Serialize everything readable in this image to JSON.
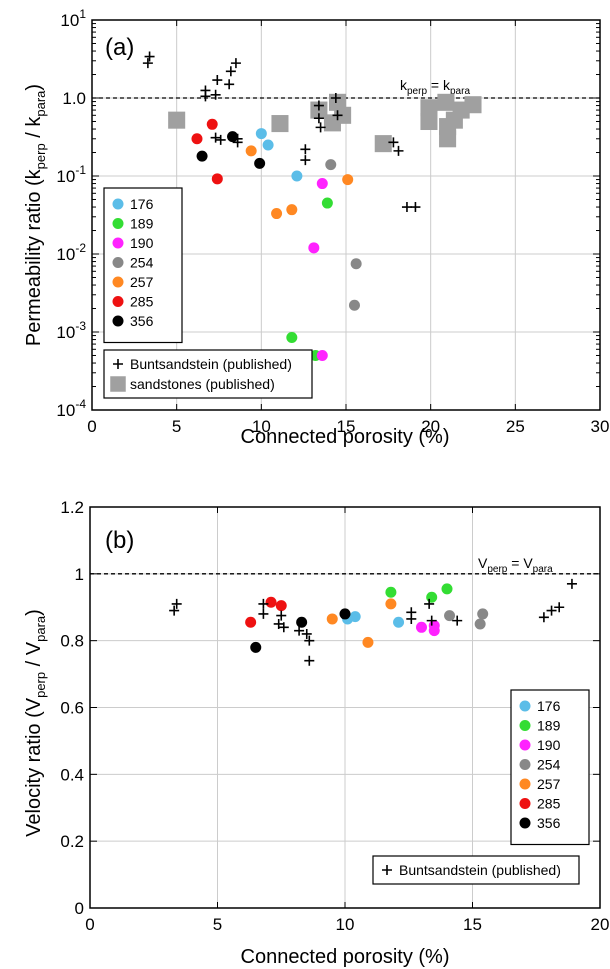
{
  "chart_data": [
    {
      "type": "scatter",
      "panel_label": "(a)",
      "xlabel": "Connected porosity (%)",
      "ylabel_main": "Permeability ratio (k",
      "ylabel_sub1": "perp",
      "ylabel_mid": " / k",
      "ylabel_sub2": "para",
      "ylabel_end": ")",
      "x_ticks": [
        "0",
        "5",
        "10",
        "15",
        "20",
        "25",
        "30"
      ],
      "y_ticks": [
        {
          "base": "10",
          "exp": "-4"
        },
        {
          "base": "10",
          "exp": "-3"
        },
        {
          "base": "10",
          "exp": "-2"
        },
        {
          "base": "10",
          "exp": "-1"
        },
        {
          "base": "1.0",
          "exp": ""
        },
        {
          "base": "10",
          "exp": "1"
        }
      ],
      "xlim": [
        0,
        30
      ],
      "ylim": [
        0.0001,
        10
      ],
      "y_scale": "log",
      "grid": true,
      "legend_placement": "left",
      "reference_line": {
        "value": 1,
        "label_a": "k",
        "label_a_sub": "perp",
        "label_eq": " = k",
        "label_b_sub": "para"
      },
      "series": [
        {
          "name": "176",
          "color": "#5bbde8",
          "marker": "circle",
          "points": [
            [
              10.0,
              0.35
            ],
            [
              10.4,
              0.25
            ],
            [
              12.1,
              0.1
            ]
          ]
        },
        {
          "name": "189",
          "color": "#33dd33",
          "marker": "circle",
          "points": [
            [
              11.8,
              0.00085
            ],
            [
              13.2,
              0.0005
            ],
            [
              13.9,
              0.045
            ]
          ]
        },
        {
          "name": "190",
          "color": "#ff22ff",
          "marker": "circle",
          "points": [
            [
              13.1,
              0.012
            ],
            [
              13.6,
              0.08
            ],
            [
              13.6,
              0.0005
            ]
          ]
        },
        {
          "name": "254",
          "color": "#888888",
          "marker": "circle",
          "points": [
            [
              14.1,
              0.14
            ],
            [
              15.6,
              0.0075
            ],
            [
              15.5,
              0.0022
            ]
          ]
        },
        {
          "name": "257",
          "color": "#ff8822",
          "marker": "circle",
          "points": [
            [
              9.4,
              0.21
            ],
            [
              10.9,
              0.033
            ],
            [
              11.8,
              0.037
            ],
            [
              15.1,
              0.09
            ]
          ]
        },
        {
          "name": "285",
          "color": "#ee1111",
          "marker": "circle",
          "points": [
            [
              6.2,
              0.3
            ],
            [
              7.1,
              0.46
            ],
            [
              7.4,
              0.092
            ]
          ]
        },
        {
          "name": "356",
          "color": "#000000",
          "marker": "circle",
          "points": [
            [
              6.5,
              0.18
            ],
            [
              8.3,
              0.32
            ],
            [
              9.9,
              0.145
            ]
          ]
        },
        {
          "name": "Buntsandstein (published)",
          "color": "#000000",
          "marker": "plus",
          "points": [
            [
              3.3,
              2.8
            ],
            [
              3.4,
              3.4
            ],
            [
              6.7,
              1.05
            ],
            [
              6.7,
              1.25
            ],
            [
              7.3,
              1.1
            ],
            [
              7.4,
              1.7
            ],
            [
              8.1,
              1.5
            ],
            [
              8.2,
              2.2
            ],
            [
              8.5,
              2.8
            ],
            [
              7.3,
              0.31
            ],
            [
              7.6,
              0.29
            ],
            [
              8.6,
              0.27
            ],
            [
              8.6,
              0.3
            ],
            [
              13.4,
              0.8
            ],
            [
              13.4,
              0.55
            ],
            [
              13.5,
              0.42
            ],
            [
              12.6,
              0.22
            ],
            [
              12.6,
              0.16
            ],
            [
              14.4,
              1.0
            ],
            [
              14.5,
              0.6
            ],
            [
              17.8,
              0.27
            ],
            [
              18.1,
              0.21
            ],
            [
              18.6,
              0.04
            ],
            [
              19.1,
              0.04
            ]
          ]
        },
        {
          "name": "sandstones (published)",
          "color": "#a0a0a0",
          "marker": "square",
          "points": [
            [
              5.0,
              0.52
            ],
            [
              11.1,
              0.47
            ],
            [
              13.4,
              0.7
            ],
            [
              14.2,
              0.48
            ],
            [
              14.5,
              0.88
            ],
            [
              14.8,
              0.6
            ],
            [
              17.2,
              0.26
            ],
            [
              19.9,
              0.75
            ],
            [
              19.9,
              0.5
            ],
            [
              20.9,
              0.88
            ],
            [
              21.0,
              0.43
            ],
            [
              21.0,
              0.3
            ],
            [
              21.4,
              0.52
            ],
            [
              21.8,
              0.7
            ],
            [
              22.5,
              0.82
            ]
          ]
        }
      ]
    },
    {
      "type": "scatter",
      "panel_label": "(b)",
      "xlabel": "Connected porosity (%)",
      "ylabel_main": "Velocity ratio (V",
      "ylabel_sub1": "perp",
      "ylabel_mid": " / V",
      "ylabel_sub2": "para",
      "ylabel_end": ")",
      "x_ticks": [
        "0",
        "5",
        "10",
        "15",
        "20"
      ],
      "y_ticks": [
        "0",
        "0.2",
        "0.4",
        "0.6",
        "0.8",
        "1",
        "1.2"
      ],
      "xlim": [
        0,
        20
      ],
      "ylim": [
        0,
        1.2
      ],
      "y_scale": "linear",
      "grid": true,
      "legend_placement": "right",
      "reference_line": {
        "value": 1,
        "label_a": "V",
        "label_a_sub": "perp",
        "label_eq": " = V",
        "label_b_sub": "para"
      },
      "series": [
        {
          "name": "176",
          "color": "#5bbde8",
          "marker": "circle",
          "points": [
            [
              10.1,
              0.865
            ],
            [
              10.4,
              0.872
            ],
            [
              12.1,
              0.855
            ]
          ]
        },
        {
          "name": "189",
          "color": "#33dd33",
          "marker": "circle",
          "points": [
            [
              11.8,
              0.945
            ],
            [
              13.4,
              0.93
            ],
            [
              14.0,
              0.955
            ]
          ]
        },
        {
          "name": "190",
          "color": "#ff22ff",
          "marker": "circle",
          "points": [
            [
              13.0,
              0.84
            ],
            [
              13.5,
              0.845
            ],
            [
              13.5,
              0.83
            ]
          ]
        },
        {
          "name": "254",
          "color": "#888888",
          "marker": "circle",
          "points": [
            [
              14.1,
              0.875
            ],
            [
              15.3,
              0.85
            ],
            [
              15.4,
              0.88
            ]
          ]
        },
        {
          "name": "257",
          "color": "#ff8822",
          "marker": "circle",
          "points": [
            [
              9.5,
              0.865
            ],
            [
              10.9,
              0.795
            ],
            [
              11.8,
              0.91
            ]
          ]
        },
        {
          "name": "285",
          "color": "#ee1111",
          "marker": "circle",
          "points": [
            [
              6.3,
              0.855
            ],
            [
              7.1,
              0.915
            ],
            [
              7.5,
              0.905
            ]
          ]
        },
        {
          "name": "356",
          "color": "#000000",
          "marker": "circle",
          "points": [
            [
              6.5,
              0.78
            ],
            [
              8.3,
              0.855
            ],
            [
              10.0,
              0.88
            ]
          ]
        },
        {
          "name": "Buntsandstein (published)",
          "color": "#000000",
          "marker": "plus",
          "points": [
            [
              3.3,
              0.89
            ],
            [
              3.4,
              0.91
            ],
            [
              6.8,
              0.88
            ],
            [
              6.8,
              0.91
            ],
            [
              7.4,
              0.85
            ],
            [
              7.5,
              0.875
            ],
            [
              7.6,
              0.84
            ],
            [
              8.2,
              0.83
            ],
            [
              8.5,
              0.82
            ],
            [
              8.6,
              0.8
            ],
            [
              8.6,
              0.74
            ],
            [
              13.3,
              0.91
            ],
            [
              13.4,
              0.86
            ],
            [
              12.6,
              0.865
            ],
            [
              12.6,
              0.885
            ],
            [
              14.4,
              0.86
            ],
            [
              17.8,
              0.87
            ],
            [
              18.1,
              0.89
            ],
            [
              18.4,
              0.9
            ],
            [
              18.9,
              0.97
            ]
          ]
        }
      ]
    }
  ]
}
